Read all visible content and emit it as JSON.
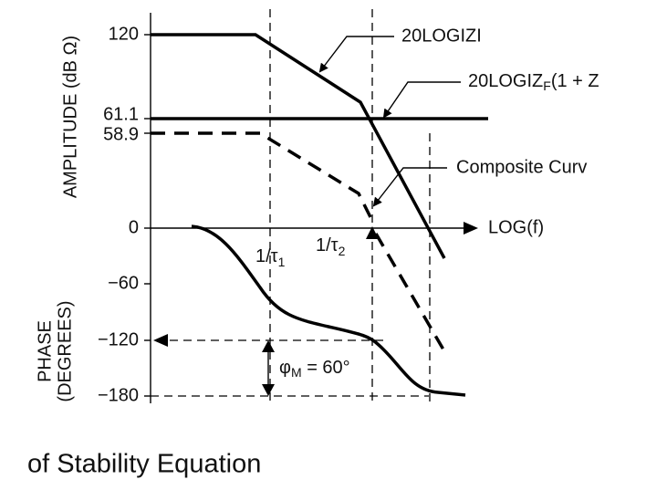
{
  "axis_labels": {
    "amplitude": "AMPLITUDE (dB Ω)",
    "phase_line1": "PHASE",
    "phase_line2": "(DEGREES)",
    "x": "LOG(f)"
  },
  "ticks": [
    "120",
    "61.1",
    "58.9",
    "0",
    "−60",
    "−120",
    "−180"
  ],
  "annotations": {
    "open_loop": "20LOGIZI",
    "feedback": {
      "main": "20LOGIZ",
      "sub": "F",
      "rest": "(1 + Z"
    },
    "composite": "Composite Curv",
    "pole1": {
      "main": "1/τ",
      "sub": "1"
    },
    "pole2": {
      "main": "1/τ",
      "sub": "2"
    },
    "margin": {
      "main": "φ",
      "sub": "M",
      "rest": " = 60°"
    }
  },
  "caption": "of Stability Equation"
}
